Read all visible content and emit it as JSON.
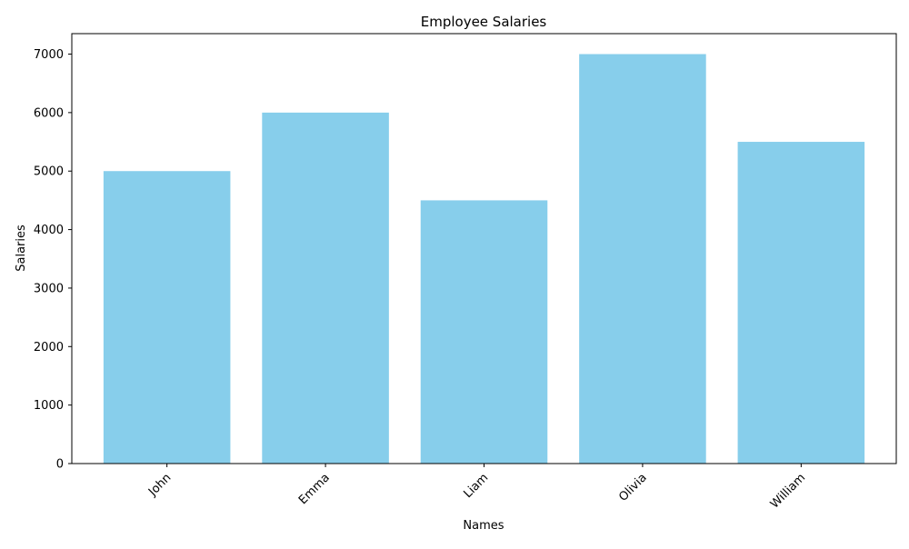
{
  "chart_data": {
    "type": "bar",
    "title": "Employee Salaries",
    "xlabel": "Names",
    "ylabel": "Salaries",
    "categories": [
      "John",
      "Emma",
      "Liam",
      "Olivia",
      "William"
    ],
    "values": [
      5000,
      6000,
      4500,
      7000,
      5500
    ],
    "ylim": [
      0,
      7350
    ],
    "yticks": [
      0,
      1000,
      2000,
      3000,
      4000,
      5000,
      6000,
      7000
    ],
    "xtick_rotation_deg": 45,
    "grid": false,
    "legend": "none",
    "bar_color": "#87ceeb",
    "axis_color": "#000000"
  }
}
